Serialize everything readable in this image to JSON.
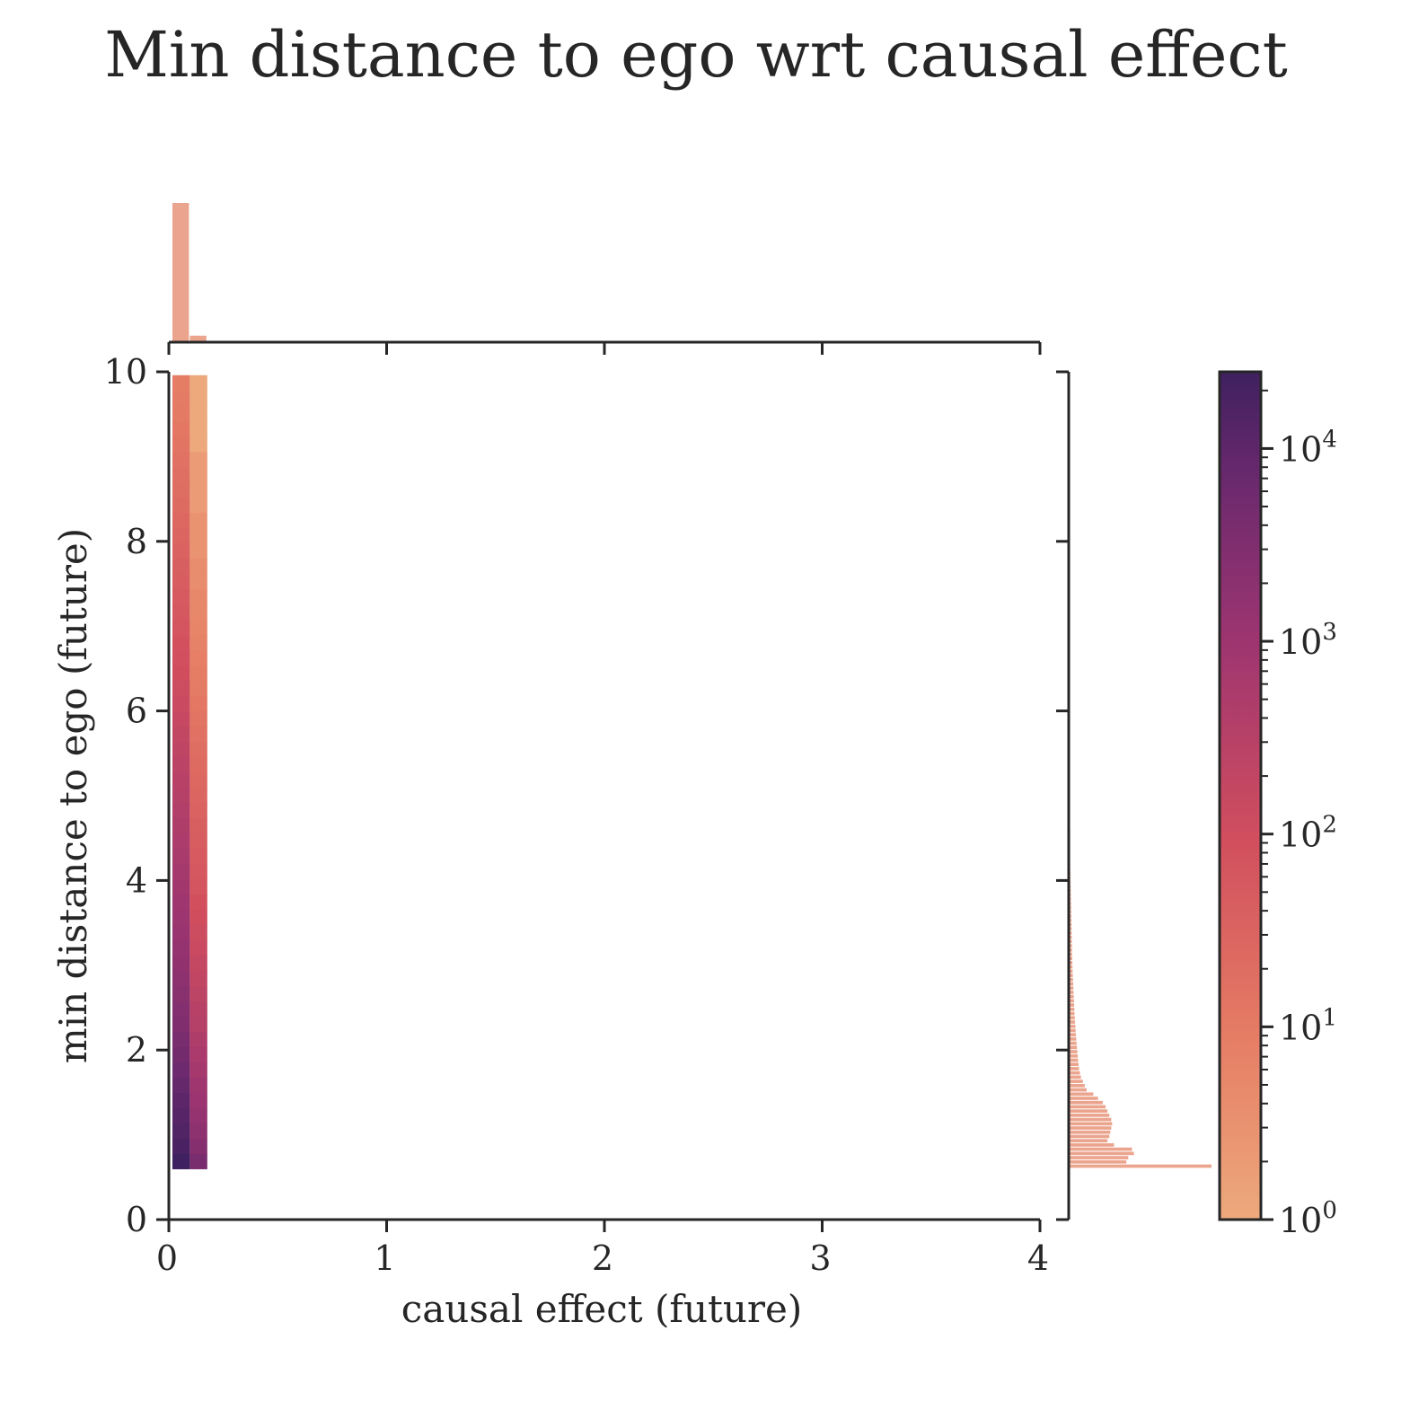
{
  "chart_data": {
    "type": "heatmap",
    "title": "Min distance to ego wrt causal effect",
    "xlabel": "causal effect (future)",
    "ylabel": "min distance to ego (future)",
    "xlim": [
      0,
      4
    ],
    "ylim": [
      0,
      10
    ],
    "xticks": [
      "0",
      "1",
      "2",
      "3",
      "4"
    ],
    "yticks": [
      "0",
      "2",
      "4",
      "6",
      "8",
      "10"
    ],
    "colorbar": {
      "scale": "log",
      "range": [
        1,
        25000
      ],
      "ticks": [
        {
          "base": "10",
          "exp": "0",
          "value": 1
        },
        {
          "base": "10",
          "exp": "1",
          "value": 10
        },
        {
          "base": "10",
          "exp": "2",
          "value": 100
        },
        {
          "base": "10",
          "exp": "3",
          "value": 1000
        },
        {
          "base": "10",
          "exp": "4",
          "value": 10000
        }
      ],
      "colormap": "flare"
    },
    "heatmap": {
      "x_edges": [
        0.0,
        0.08,
        0.16
      ],
      "y_start": 0.6,
      "y_step": 0.18,
      "col_0_counts": [
        25000,
        18000,
        15000,
        12000,
        10000,
        8000,
        6000,
        5000,
        4000,
        3000,
        2600,
        2200,
        1900,
        1600,
        1400,
        1200,
        1000,
        900,
        800,
        700,
        600,
        520,
        450,
        400,
        350,
        300,
        260,
        220,
        190,
        160,
        140,
        120,
        100,
        90,
        80,
        70,
        60,
        52,
        45,
        40,
        35,
        30,
        26,
        22,
        20,
        18,
        16,
        14,
        12,
        11,
        10,
        9
      ],
      "col_1_counts": [
        4000,
        2500,
        1800,
        1400,
        1100,
        900,
        700,
        550,
        450,
        350,
        300,
        250,
        200,
        170,
        140,
        120,
        100,
        85,
        70,
        60,
        52,
        45,
        40,
        35,
        30,
        26,
        22,
        19,
        16,
        14,
        12,
        10,
        9,
        8,
        7,
        6,
        5,
        5,
        4,
        4,
        3,
        3,
        3,
        2,
        2,
        2,
        2,
        1,
        1,
        1,
        1,
        1
      ]
    },
    "marginal_x": {
      "bin_edges": [
        0.0,
        0.08,
        0.16
      ],
      "counts": [
        150000,
        7000
      ]
    },
    "marginal_y": {
      "y_start": 0.6,
      "y_step": 0.05,
      "counts": [
        150000,
        60000,
        62000,
        68000,
        66000,
        47000,
        40000,
        42000,
        43000,
        44000,
        45000,
        44000,
        42000,
        40000,
        38000,
        35000,
        30000,
        25000,
        18000,
        16000,
        14000,
        12000,
        11000,
        10000,
        9500,
        9000,
        8600,
        8200,
        7800,
        7400,
        7000,
        6700,
        6400,
        6100,
        5800,
        5500,
        5200,
        5000,
        4800,
        4600,
        4400,
        4200,
        4000,
        3800,
        3600,
        3400,
        3200,
        3000,
        2900,
        2800,
        2700,
        2600,
        2500,
        2400,
        2300,
        2200,
        2100,
        2000,
        1900,
        1800,
        1700,
        1600,
        1500,
        1400,
        1300,
        1200,
        1100,
        1000,
        900,
        800,
        700,
        600,
        500,
        400,
        300,
        200,
        150,
        100,
        50,
        20
      ]
    },
    "bar_color": "#eba58f",
    "grid": false
  }
}
